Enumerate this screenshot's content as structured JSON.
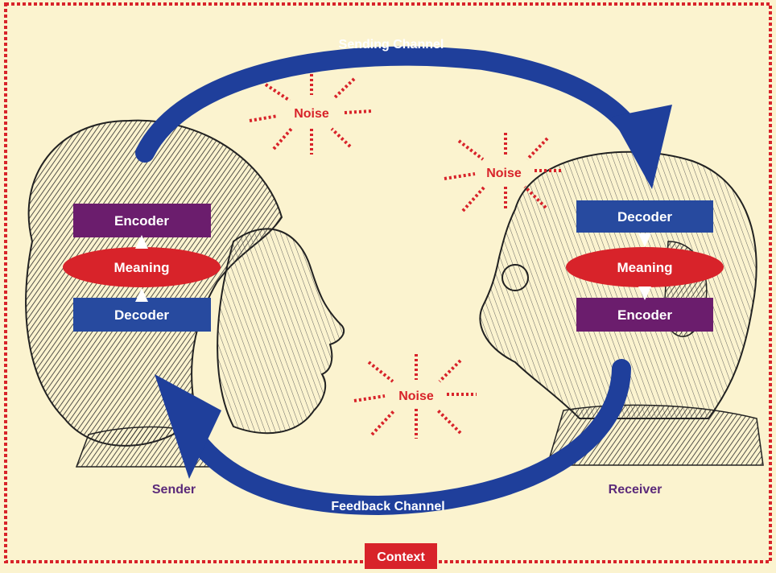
{
  "channels": {
    "sending": "Sending Channel",
    "feedback": "Feedback Channel"
  },
  "noise": [
    "Noise",
    "Noise",
    "Noise"
  ],
  "sender": {
    "label": "Sender",
    "encoder": "Encoder",
    "meaning": "Meaning",
    "decoder": "Decoder"
  },
  "receiver": {
    "label": "Receiver",
    "decoder": "Decoder",
    "meaning": "Meaning",
    "encoder": "Encoder"
  },
  "context": "Context",
  "colors": {
    "background": "#fbf3cf",
    "border": "#d8232a",
    "channel": "#1f3f9b",
    "encoder": "#6b1d6d",
    "decoder": "#274a9f",
    "meaning": "#d8232a",
    "noise": "#d8232a",
    "person_label": "#5b2a7a"
  },
  "figures": {
    "sender_figure": "woman-profile-engraving",
    "receiver_figure": "man-profile-engraving"
  }
}
